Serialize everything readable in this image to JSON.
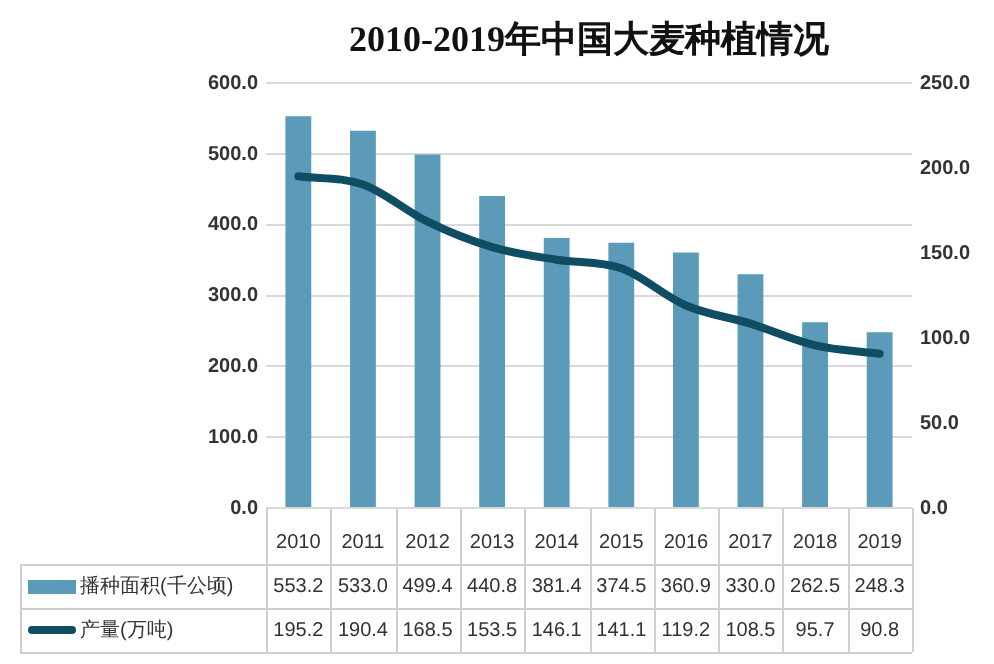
{
  "chart_data": {
    "type": "bar",
    "title": "2010-2019年中国大麦种植情况",
    "categories": [
      "2010",
      "2011",
      "2012",
      "2013",
      "2014",
      "2015",
      "2016",
      "2017",
      "2018",
      "2019"
    ],
    "series": [
      {
        "name": "播种面积(千公顷)",
        "color": "#5b9ab8",
        "values": [
          553.2,
          533.0,
          499.4,
          440.8,
          381.4,
          374.5,
          360.9,
          330.0,
          262.5,
          248.3
        ],
        "value_labels": [
          "553.2",
          "533.0",
          "499.4",
          "440.8",
          "381.4",
          "374.5",
          "360.9",
          "330.0",
          "262.5",
          "248.3"
        ]
      },
      {
        "name": "产量(万吨)",
        "type": "line",
        "axis": "y2",
        "color": "#0e4d62",
        "values": [
          195.2,
          190.4,
          168.5,
          153.5,
          146.1,
          141.1,
          119.2,
          108.5,
          95.7,
          90.8
        ],
        "value_labels": [
          "195.2",
          "190.4",
          "168.5",
          "153.5",
          "146.1",
          "141.1",
          "119.2",
          "108.5",
          "95.7",
          "90.8"
        ]
      }
    ],
    "ylim": [
      0,
      600
    ],
    "yticks": [
      {
        "value": 0,
        "label": "0.0"
      },
      {
        "value": 100,
        "label": "100.0"
      },
      {
        "value": 200,
        "label": "200.0"
      },
      {
        "value": 300,
        "label": "300.0"
      },
      {
        "value": 400,
        "label": "400.0"
      },
      {
        "value": 500,
        "label": "500.0"
      },
      {
        "value": 600,
        "label": "600.0"
      }
    ],
    "y2lim": [
      0,
      250
    ],
    "y2ticks": [
      {
        "value": 0,
        "label": "0.0"
      },
      {
        "value": 50,
        "label": "50.0"
      },
      {
        "value": 100,
        "label": "100.0"
      },
      {
        "value": 150,
        "label": "150.0"
      },
      {
        "value": 200,
        "label": "200.0"
      },
      {
        "value": 250,
        "label": "250.0"
      }
    ],
    "grid": "y",
    "legend": "bottom",
    "marker": "none",
    "line_style": "solid"
  }
}
